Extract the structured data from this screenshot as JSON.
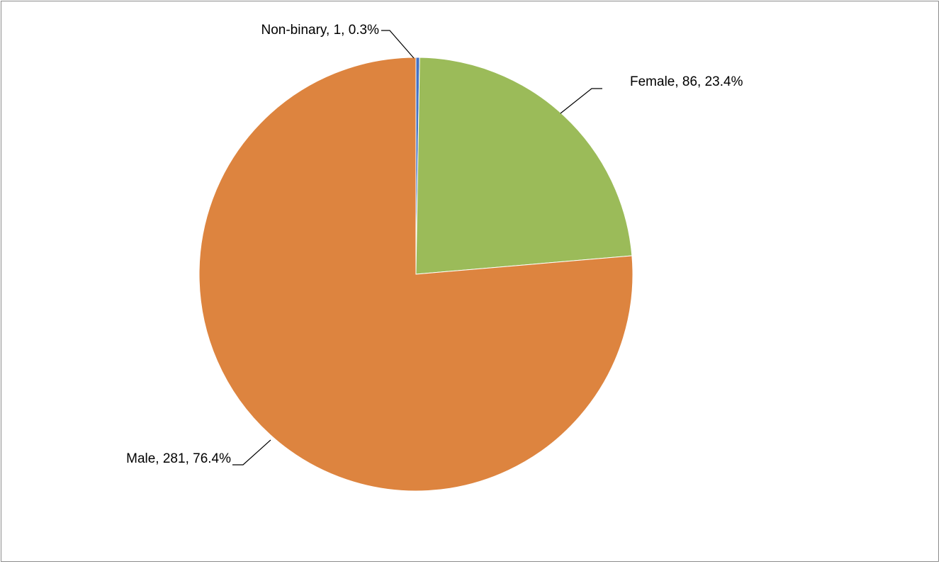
{
  "chart_data": {
    "type": "pie",
    "title": "",
    "slices": [
      {
        "label": "Non-binary",
        "value": 1,
        "percent": 0.3,
        "color": "#4472c4",
        "text": "Non-binary, 1, 0.3%"
      },
      {
        "label": "Female",
        "value": 86,
        "percent": 23.4,
        "color": "#9bbb59",
        "text": "Female, 86, 23.4%"
      },
      {
        "label": "Male",
        "value": 281,
        "percent": 76.4,
        "color": "#dd843f",
        "text": "Male, 281, 76.4%"
      }
    ],
    "legend": "none",
    "data_labels": "category, value, percentage"
  }
}
